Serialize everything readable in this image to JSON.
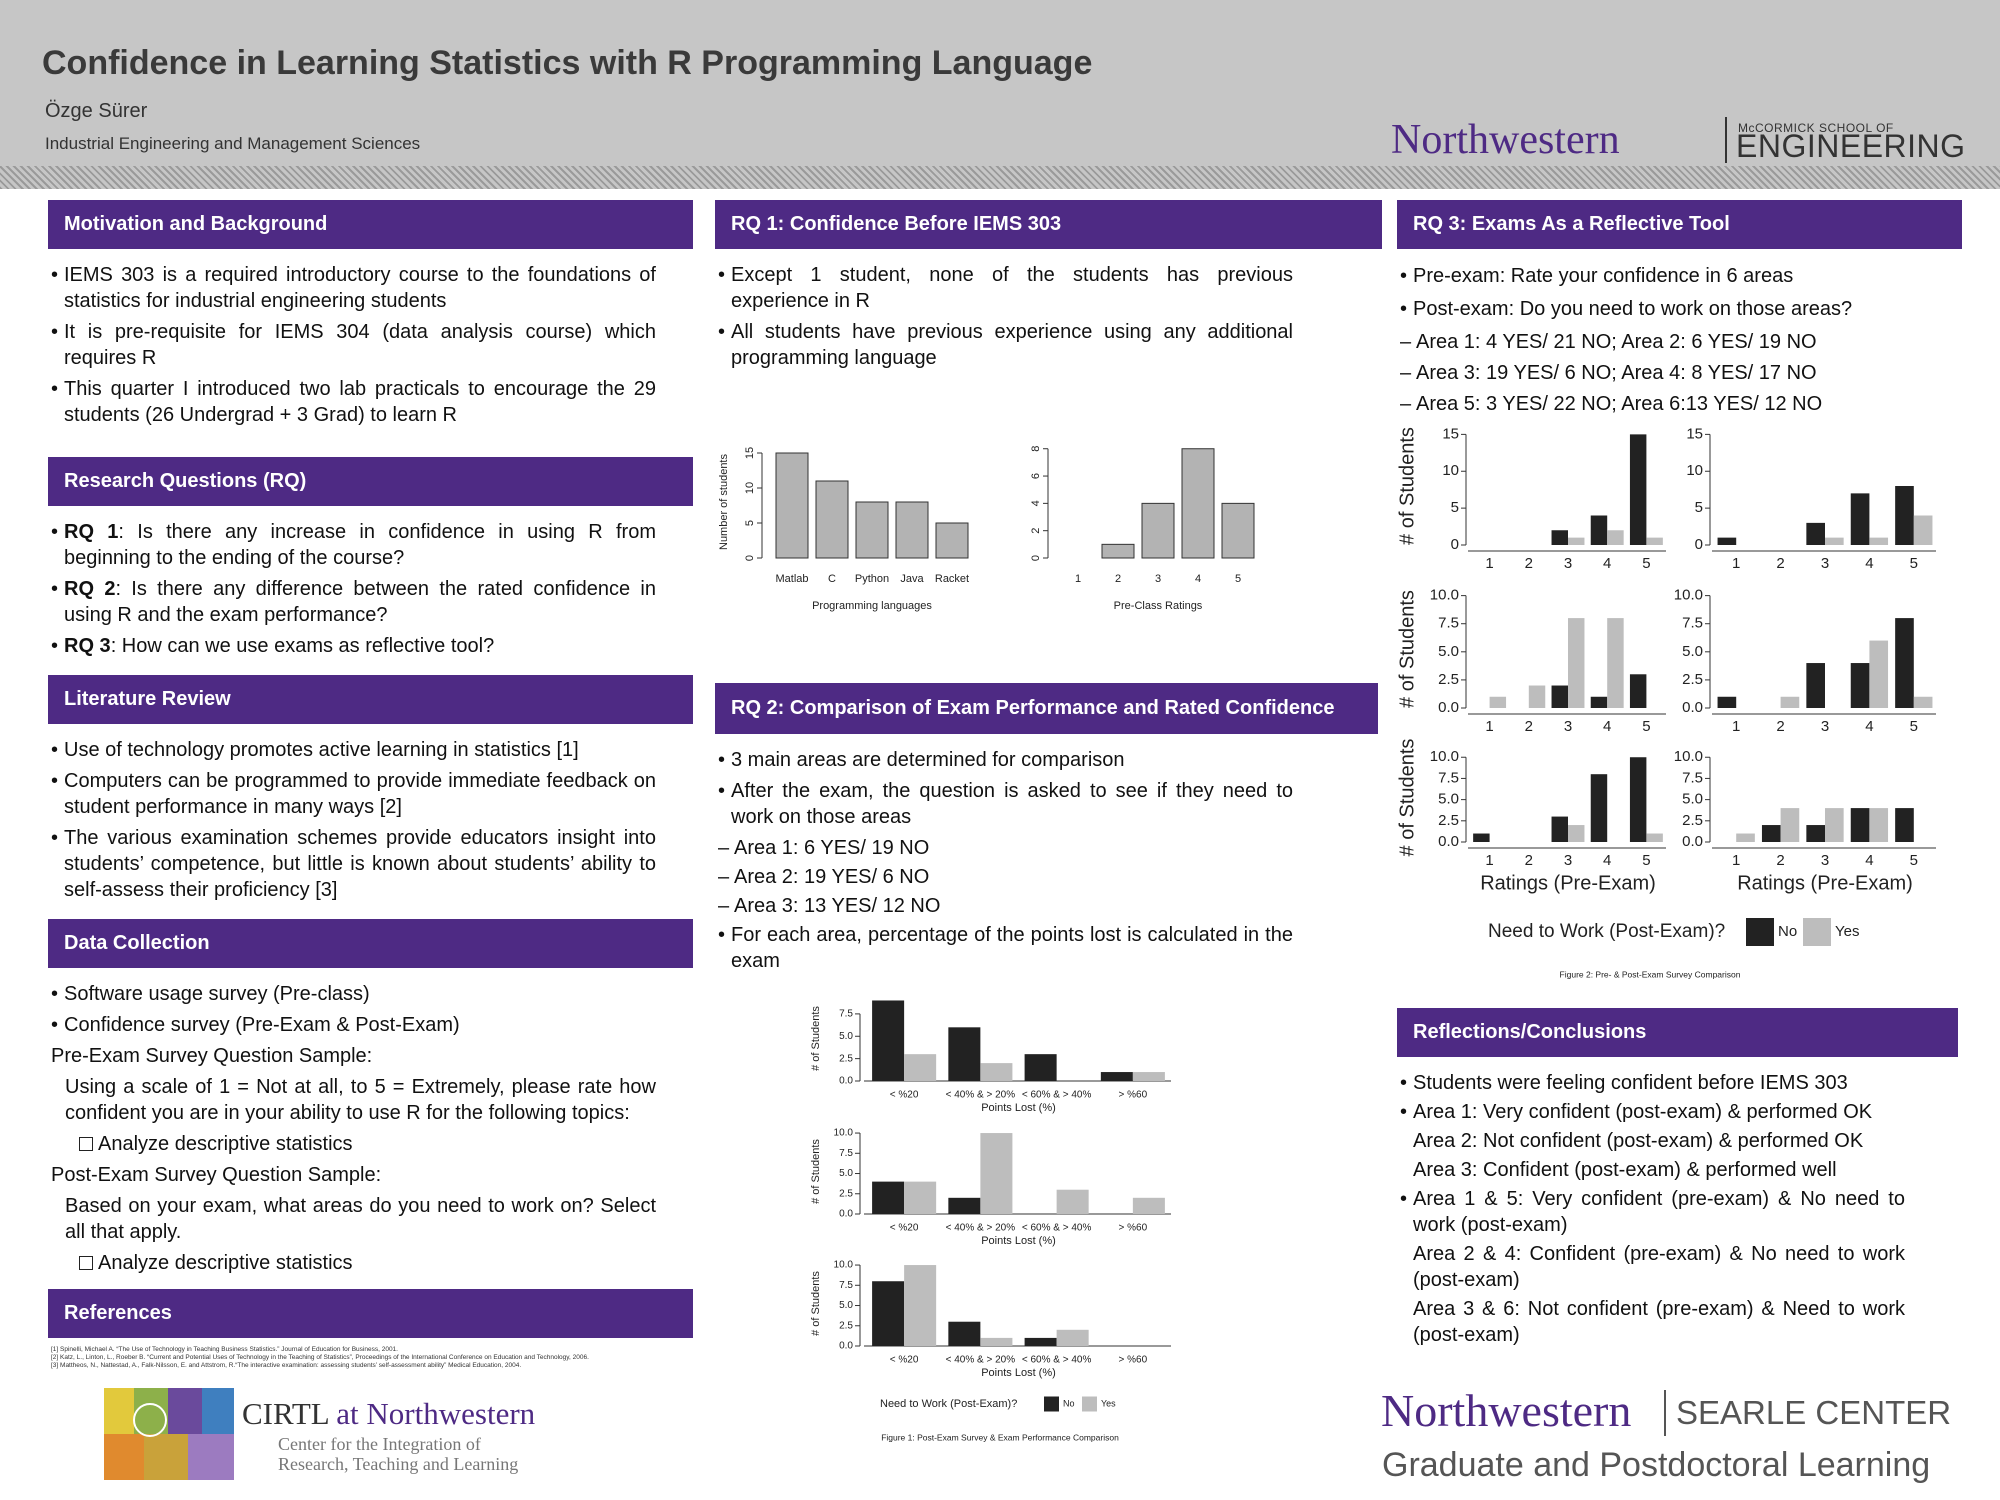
{
  "header": {
    "title": "Confidence in Learning Statistics with R Programming Language",
    "author": "Özge Sürer",
    "affiliation": "Industrial Engineering and Management Sciences",
    "logo": {
      "name": "Northwestern",
      "school": "McCORMICK SCHOOL OF",
      "unit": "ENGINEERING"
    }
  },
  "motivation": {
    "heading": "Motivation and Background",
    "bullets": [
      "IEMS 303 is a required introductory course to the foundations of statistics for industrial engineering students",
      "It is pre-requisite for IEMS 304 (data analysis course) which requires R",
      "This quarter I introduced two lab practicals to encourage the 29 students (26 Undergrad + 3 Grad) to learn R"
    ]
  },
  "research_questions": {
    "heading": "Research Questions (RQ)",
    "bullets": [
      {
        "label": "RQ 1",
        "text": ": Is there any increase in confidence in using R from beginning to the ending of the course?"
      },
      {
        "label": "RQ 2",
        "text": ": Is there any difference between the rated confidence in using R and the exam performance?"
      },
      {
        "label": "RQ 3",
        "text": ": How can we use exams as reflective tool?"
      }
    ]
  },
  "literature": {
    "heading": "Literature Review",
    "bullets": [
      "Use of technology promotes active learning in statistics [1]",
      "Computers can be programmed to provide immediate feedback on student performance in many ways [2]",
      "The various examination schemes provide educators insight into students’ competence, but little is known about students’ ability to self-assess their proficiency [3]"
    ]
  },
  "data_collection": {
    "heading": "Data Collection",
    "bullets": [
      "Software usage survey (Pre-class)",
      "Confidence survey (Pre-Exam & Post-Exam)"
    ],
    "pre_exam": {
      "heading": "Pre-Exam Survey Question Sample:",
      "question": "Using a scale of 1 = Not at all, to 5 = Extremely, please rate how confident you are in your ability to use R for the following topics:",
      "option": "Analyze descriptive statistics"
    },
    "post_exam": {
      "heading": "Post-Exam Survey Question Sample:",
      "question": "Based on your exam, what areas do you need to work on? Select all that apply.",
      "option": "Analyze descriptive statistics"
    }
  },
  "references": {
    "heading": "References",
    "items": [
      "[1] Spinelli, Michael A. “The Use of Technology in Teaching Business Statistics.” Journal of Education for Business, 2001.",
      "[2] Katz, L., Linton, L., Roeber B. “Current and Potential Uses of Technology in the Teaching of Statistics”, Proceedings of the International Conference on Education and Technology, 2006.",
      "[3] Mattheos, N., Nattestad, A., Falk-Nilsson, E. and Attstrom, R.“The interactive examination: assessing students’ self-assessment ability” Medical Education, 2004."
    ]
  },
  "cirtl_logo": {
    "name": "CIRTL",
    "suffix": "at Northwestern",
    "line1": "Center for the Integration of",
    "line2": "Research, Teaching and Learning"
  },
  "rq1": {
    "heading": "RQ 1: Confidence Before IEMS 303",
    "bullets": [
      "Except 1 student, none of the students has previous experience in R",
      "All students have previous experience using any additional programming language"
    ]
  },
  "rq2": {
    "heading": "RQ 2: Comparison of Exam Performance and Rated Confidence",
    "bullets": [
      "3 main areas are determined for comparison",
      "After the exam, the question is asked to see if they need to work on those areas"
    ],
    "areas": [
      "Area 1: 6 YES/ 19 NO",
      "Area 2: 19 YES/ 6 NO",
      "Area 3: 13 YES/ 12 NO"
    ],
    "last": "For each area, percentage of the points lost is calculated in the exam"
  },
  "rq3": {
    "heading": "RQ 3: Exams As a Reflective Tool",
    "bullets": [
      "Pre-exam: Rate your confidence in 6 areas",
      "Post-exam: Do you need to work on those areas?"
    ],
    "areas": [
      "Area 1: 4 YES/ 21 NO; Area 2: 6 YES/ 19 NO",
      "Area 3: 19 YES/ 6 NO; Area 4: 8 YES/ 17 NO",
      "Area 5: 3 YES/ 22 NO; Area 6:13 YES/ 12 NO"
    ]
  },
  "reflections": {
    "heading": "Reflections/Conclusions",
    "items": [
      {
        "text": "Students were feeling confident before IEMS 303"
      },
      {
        "text": "Area 1: Very confident (post-exam) & performed OK",
        "more": [
          "Area 2: Not confident (post-exam) & performed OK",
          "Area 3: Confident (post-exam) & performed well"
        ]
      },
      {
        "text": "Area 1 & 5: Very confident (pre-exam) & No need to work (post-exam)",
        "more": [
          "Area 2 & 4: Confident (pre-exam) & No need to work (post-exam)",
          "Area 3 & 6: Not confident (pre-exam) & Need to work (post-exam)"
        ]
      }
    ]
  },
  "searle_logo": {
    "name": "Northwestern",
    "unit": "SEARLE CENTER",
    "subtitle": "Graduate and Postdoctoral Learning"
  },
  "chart_data": [
    {
      "type": "bar",
      "categories": [
        "Matlab",
        "C",
        "Python",
        "Java",
        "Racket"
      ],
      "values": [
        15,
        11,
        8,
        8,
        5
      ],
      "color": "#b3b3b3",
      "ylabel": "Number of students",
      "xlabel": "Programming languages",
      "ylim": [
        0,
        16
      ],
      "yticks": [
        0,
        5,
        10,
        15
      ]
    },
    {
      "type": "bar",
      "categories": [
        "1",
        "2",
        "3",
        "4",
        "5"
      ],
      "values": [
        0,
        1,
        4,
        8,
        4
      ],
      "color": "#b3b3b3",
      "xlabel": "Pre-Class Ratings",
      "ylim": [
        0,
        8.2
      ],
      "yticks": [
        0,
        2,
        4,
        6,
        8
      ]
    },
    {
      "type": "bar",
      "categories": [
        "< %20",
        "< 40% & > 20%",
        "< 60% & > 40%",
        "> %60"
      ],
      "series": [
        {
          "name": "No",
          "color": "#222222",
          "values": [
            9,
            6,
            3,
            1
          ]
        },
        {
          "name": "Yes",
          "color": "#bdbdbd",
          "values": [
            3,
            2,
            0,
            1
          ]
        }
      ],
      "ylabel": "# of Students",
      "xlabel": "Points Lost (%)",
      "ylim": [
        0,
        9.5
      ],
      "yticks": [
        {
          "value": 0,
          "label": "0.0"
        },
        2.5,
        {
          "value": 5,
          "label": "5.0"
        },
        7.5
      ]
    },
    {
      "type": "bar",
      "categories": [
        "< %20",
        "< 40% & > 20%",
        "< 60% & > 40%",
        "> %60"
      ],
      "series": [
        {
          "name": "No",
          "color": "#222222",
          "values": [
            4,
            2,
            0,
            0
          ]
        },
        {
          "name": "Yes",
          "color": "#bdbdbd",
          "values": [
            4,
            10,
            3,
            2
          ]
        }
      ],
      "ylabel": "# of Students",
      "xlabel": "Points Lost (%)",
      "ylim": [
        0,
        10.5
      ],
      "yticks": [
        {
          "value": 0,
          "label": "0.0"
        },
        2.5,
        {
          "value": 5,
          "label": "5.0"
        },
        7.5,
        {
          "value": 10,
          "label": "10.0"
        }
      ]
    },
    {
      "type": "bar",
      "categories": [
        "< %20",
        "< 40% & > 20%",
        "< 60% & > 40%",
        "> %60"
      ],
      "series": [
        {
          "name": "No",
          "color": "#222222",
          "values": [
            8,
            3,
            1,
            0
          ]
        },
        {
          "name": "Yes",
          "color": "#bdbdbd",
          "values": [
            10,
            1,
            2,
            0
          ]
        }
      ],
      "ylabel": "# of Students",
      "xlabel": "Points Lost (%)",
      "ylim": [
        0,
        10.5
      ],
      "yticks": [
        {
          "value": 0,
          "label": "0.0"
        },
        2.5,
        {
          "value": 5,
          "label": "5.0"
        },
        7.5,
        {
          "value": 10,
          "label": "10.0"
        }
      ],
      "legend": "bottom",
      "legend_title": "Need to Work (Post-Exam)?",
      "caption": "Figure 1: Post-Exam Survey & Exam Performance Comparison"
    },
    {
      "type": "bar",
      "categories": [
        "1",
        "2",
        "3",
        "4",
        "5"
      ],
      "series": [
        {
          "name": "No",
          "color": "#222222",
          "values": [
            0,
            0,
            2,
            4,
            15
          ]
        },
        {
          "name": "Yes",
          "color": "#bdbdbd",
          "values": [
            0,
            0,
            1,
            2,
            1
          ]
        }
      ],
      "ylabel": "# of Students",
      "ylim": [
        0,
        16
      ],
      "yticks": [
        0,
        5,
        10,
        15
      ]
    },
    {
      "type": "bar",
      "categories": [
        "1",
        "2",
        "3",
        "4",
        "5"
      ],
      "series": [
        {
          "name": "No",
          "color": "#222222",
          "values": [
            1,
            0,
            3,
            7,
            8
          ]
        },
        {
          "name": "Yes",
          "color": "#bdbdbd",
          "values": [
            0,
            0,
            1,
            1,
            4
          ]
        }
      ],
      "ylim": [
        0,
        16
      ],
      "yticks": [
        0,
        5,
        10,
        15
      ]
    },
    {
      "type": "bar",
      "categories": [
        "1",
        "2",
        "3",
        "4",
        "5"
      ],
      "series": [
        {
          "name": "No",
          "color": "#222222",
          "values": [
            0,
            0,
            2,
            1,
            3
          ]
        },
        {
          "name": "Yes",
          "color": "#bdbdbd",
          "values": [
            1,
            2,
            8,
            8,
            0
          ]
        }
      ],
      "ylabel": "# of Students",
      "ylim": [
        0,
        10.5
      ],
      "yticks": [
        {
          "value": 0,
          "label": "0.0"
        },
        2.5,
        {
          "value": 5,
          "label": "5.0"
        },
        7.5,
        {
          "value": 10,
          "label": "10.0"
        }
      ]
    },
    {
      "type": "bar",
      "categories": [
        "1",
        "2",
        "3",
        "4",
        "5"
      ],
      "series": [
        {
          "name": "No",
          "color": "#222222",
          "values": [
            1,
            0,
            4,
            4,
            8
          ]
        },
        {
          "name": "Yes",
          "color": "#bdbdbd",
          "values": [
            0,
            1,
            0,
            6,
            1
          ]
        }
      ],
      "ylim": [
        0,
        10.5
      ],
      "yticks": [
        {
          "value": 0,
          "label": "0.0"
        },
        2.5,
        {
          "value": 5,
          "label": "5.0"
        },
        7.5,
        {
          "value": 10,
          "label": "10.0"
        }
      ]
    },
    {
      "type": "bar",
      "categories": [
        "1",
        "2",
        "3",
        "4",
        "5"
      ],
      "series": [
        {
          "name": "No",
          "color": "#222222",
          "values": [
            1,
            0,
            3,
            8,
            10
          ]
        },
        {
          "name": "Yes",
          "color": "#bdbdbd",
          "values": [
            0,
            0,
            2,
            0,
            1
          ]
        }
      ],
      "ylabel": "# of Students",
      "xlabel": "Ratings (Pre-Exam)",
      "ylim": [
        0,
        10.5
      ],
      "yticks": [
        {
          "value": 0,
          "label": "0.0"
        },
        2.5,
        {
          "value": 5,
          "label": "5.0"
        },
        7.5,
        {
          "value": 10,
          "label": "10.0"
        }
      ]
    },
    {
      "type": "bar",
      "categories": [
        "1",
        "2",
        "3",
        "4",
        "5"
      ],
      "series": [
        {
          "name": "No",
          "color": "#222222",
          "values": [
            0,
            2,
            2,
            4,
            4
          ]
        },
        {
          "name": "Yes",
          "color": "#bdbdbd",
          "values": [
            1,
            4,
            4,
            4,
            0
          ]
        }
      ],
      "xlabel": "Ratings (Pre-Exam)",
      "ylim": [
        0,
        10.5
      ],
      "yticks": [
        {
          "value": 0,
          "label": "0.0"
        },
        2.5,
        {
          "value": 5,
          "label": "5.0"
        },
        7.5,
        {
          "value": 10,
          "label": "10.0"
        }
      ],
      "legend": "bottom",
      "legend_title": "Need to Work (Post-Exam)?",
      "caption": "Figure 2: Pre- & Post-Exam Survey Comparison"
    }
  ]
}
